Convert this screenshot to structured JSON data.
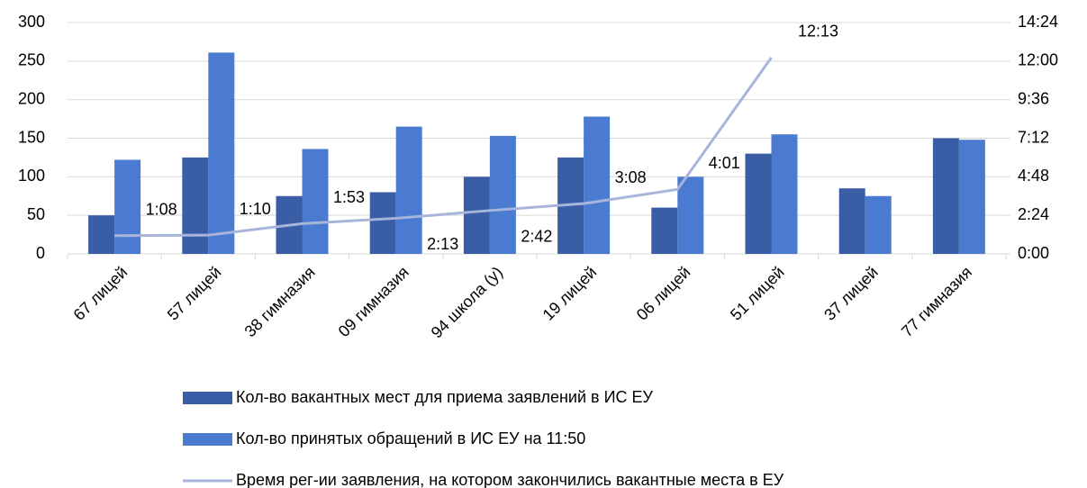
{
  "chart_data": {
    "type": "bar",
    "categories": [
      "67 лицей",
      "57 лицей",
      "38 гимназия",
      "09 гимназия",
      "94 школа (у)",
      "19 лицей",
      "06 лицей",
      "51 лицей",
      "37 лицей",
      "77 гимназия"
    ],
    "series": [
      {
        "name": "Кол-во вакантных мест для приема заявлений в ИС ЕУ",
        "color": "#3a5ea6",
        "values": [
          50,
          125,
          75,
          80,
          100,
          125,
          60,
          130,
          85,
          150
        ]
      },
      {
        "name": "Кол-во принятых обращений в ИС ЕУ на 11:50",
        "color": "#4a7bd0",
        "values": [
          122,
          261,
          136,
          165,
          153,
          178,
          100,
          155,
          75,
          148
        ]
      },
      {
        "name": "Время рег-ии заявления, на котором закончились вакантные места в ЕУ",
        "color": "#a7b5da",
        "type": "line",
        "axis": "y2",
        "values": [
          68,
          70,
          113,
          133,
          162,
          188,
          241,
          733,
          null,
          null
        ],
        "value_labels": [
          "1:08",
          "1:10",
          "1:53",
          "2:13",
          "2:42",
          "3:08",
          "4:01",
          "12:13",
          null,
          null
        ]
      }
    ],
    "ylim": [
      0,
      300
    ],
    "yticks": [
      0,
      50,
      100,
      150,
      200,
      250,
      300
    ],
    "y2lim": [
      0,
      864
    ],
    "y2ticks": [
      {
        "value": 0,
        "label": "0:00"
      },
      {
        "value": 144,
        "label": "2:24"
      },
      {
        "value": 288,
        "label": "4:48"
      },
      {
        "value": 432,
        "label": "7:12"
      },
      {
        "value": 576,
        "label": "9:36"
      },
      {
        "value": 720,
        "label": "12:00"
      },
      {
        "value": 864,
        "label": "14:24"
      }
    ],
    "grid": true,
    "legend": "bottom"
  }
}
